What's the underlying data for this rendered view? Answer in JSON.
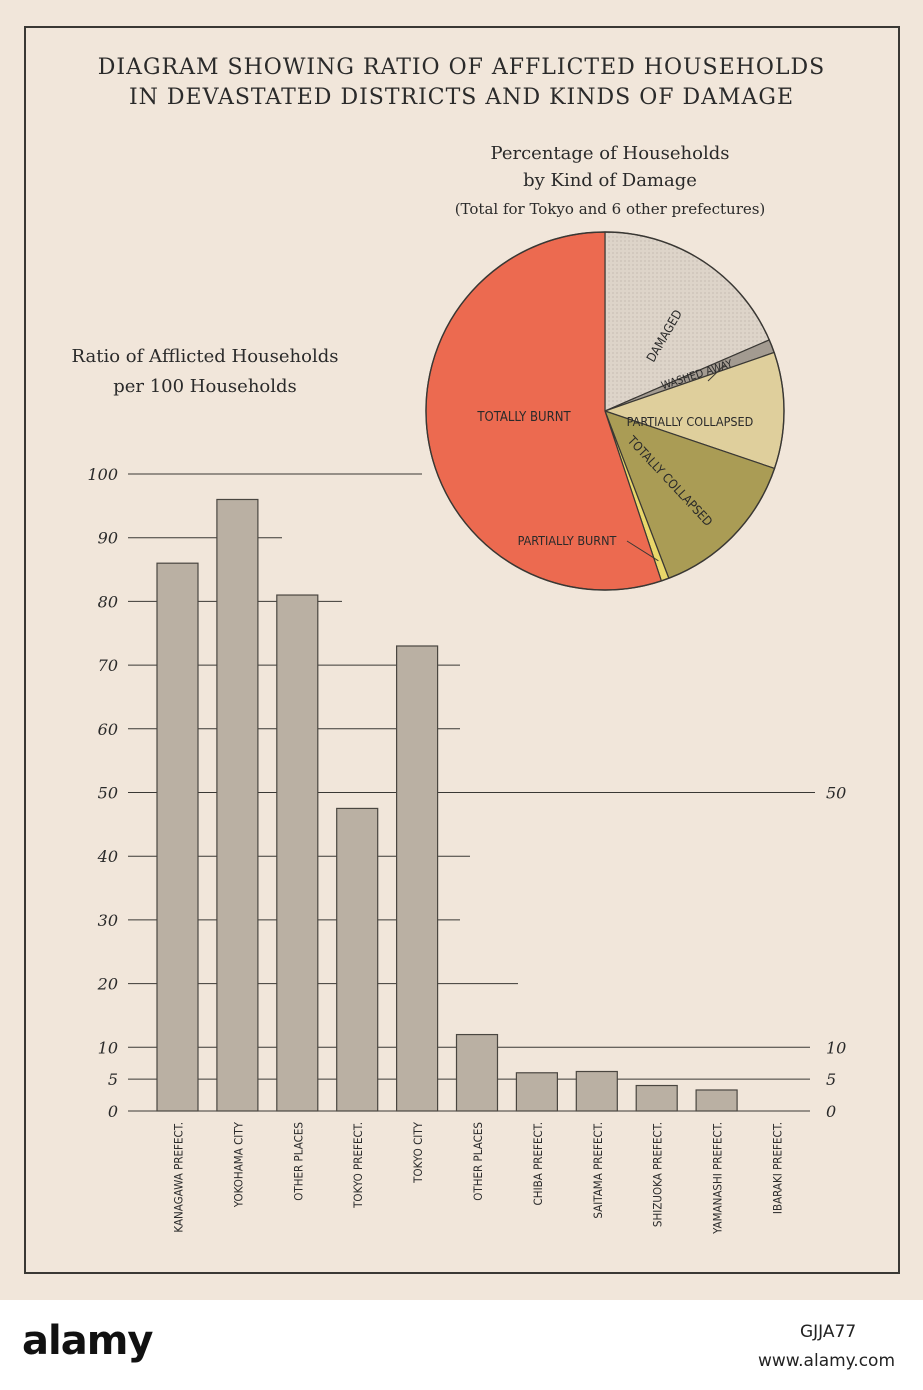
{
  "title_line_1": "DIAGRAM SHOWING RATIO OF AFFLICTED HOUSEHOLDS",
  "title_line_2": "IN DEVASTATED DISTRICTS AND KINDS OF DAMAGE",
  "footer": {
    "logo": "alamy",
    "image_ref": "GJJA77",
    "url": "www.alamy.com"
  },
  "chart_data": [
    {
      "type": "pie",
      "title_line_1": "Percentage of Households",
      "title_line_2": "by Kind of Damage",
      "subtitle": "(Total for Tokyo and 6 other prefectures)",
      "slices": [
        {
          "label": "DAMAGED",
          "percent": 18.5,
          "color": "#ddd4c9"
        },
        {
          "label": "WASHED AWAY",
          "percent": 1.2,
          "color": "#a39b91"
        },
        {
          "label": "PARTIALLY COLLAPSED",
          "percent": 10.5,
          "color": "#dfcf9c"
        },
        {
          "label": "TOTALLY COLLAPSED",
          "percent": 14.0,
          "color": "#aa9c55"
        },
        {
          "label": "PARTIALLY BURNT",
          "percent": 0.7,
          "color": "#e9d76a"
        },
        {
          "label": "TOTALLY BURNT",
          "percent": 55.1,
          "color": "#ec6a50"
        }
      ]
    },
    {
      "type": "bar",
      "title_line_1": "Ratio of Afflicted Households",
      "title_line_2": "per 100 Households",
      "categories": [
        "KANAGAWA PREFECT.",
        "YOKOHAMA CITY",
        "OTHER PLACES",
        "TOKYO PREFECT.",
        "TOKYO CITY",
        "OTHER PLACES",
        "CHIBA PREFECT.",
        "SAITAMA PREFECT.",
        "SHIZUOKA PREFECT.",
        "YAMANASHI PREFECT.",
        "IBARAKI PREFECT."
      ],
      "values": [
        86,
        96,
        81,
        47.5,
        73,
        12,
        6,
        6.2,
        4,
        3.3,
        0
      ],
      "ylim": [
        0,
        100
      ],
      "left_ticks": [
        0,
        5,
        10,
        20,
        30,
        40,
        50,
        60,
        70,
        80,
        90,
        100
      ],
      "right_ticks": [
        0,
        5,
        10,
        50
      ],
      "bar_color": "#bab0a3"
    }
  ]
}
